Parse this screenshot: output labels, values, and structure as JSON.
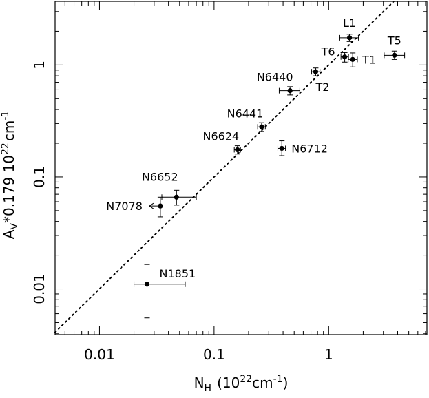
{
  "chart_data": {
    "type": "scatter",
    "title": "",
    "xlabel": {
      "main": "N",
      "sub": "H",
      "units": "(10",
      "exp": "22",
      "unit2": "cm",
      "exp2": "-1",
      "close": ")"
    },
    "ylabel": {
      "main": "A",
      "sub": "V",
      "rest": "*0.179  10",
      "exp": "22",
      "unit": "cm",
      "exp2": "-1"
    },
    "x_scale": "log",
    "y_scale": "log",
    "xlim": [
      0.0041,
      7.2
    ],
    "ylim": [
      0.0039,
      3.7
    ],
    "x_ticks": [
      {
        "value": 0.01,
        "label": "0.01"
      },
      {
        "value": 0.1,
        "label": "0.1"
      },
      {
        "value": 1,
        "label": "1"
      }
    ],
    "y_ticks": [
      {
        "value": 0.01,
        "label": "0.01"
      },
      {
        "value": 0.1,
        "label": "0.1"
      },
      {
        "value": 1,
        "label": "1"
      }
    ],
    "grid": false,
    "legend": "none",
    "reference_line": {
      "style": "dotted",
      "description": "A_V*0.179 = N_H",
      "slope": 1
    },
    "points": [
      {
        "label": "L1",
        "x": 1.52,
        "y": 1.75,
        "xerr": [
          1.25,
          1.82
        ],
        "yerr": [
          1.62,
          1.88
        ],
        "label_pos": "above"
      },
      {
        "label": "T5",
        "x": 3.75,
        "y": 1.22,
        "xerr": [
          3.05,
          4.6
        ],
        "yerr": [
          1.12,
          1.33
        ],
        "label_pos": "above"
      },
      {
        "label": "T6",
        "x": 1.38,
        "y": 1.18,
        "xerr": [
          1.28,
          1.49
        ],
        "yerr": [
          1.06,
          1.29
        ],
        "label_pos": "left"
      },
      {
        "label": "T1",
        "x": 1.62,
        "y": 1.12,
        "xerr": [
          1.48,
          1.78
        ],
        "yerr": [
          0.96,
          1.28
        ],
        "label_pos": "right"
      },
      {
        "label": "T2",
        "x": 0.77,
        "y": 0.87,
        "xerr": [
          0.71,
          0.84
        ],
        "yerr": [
          0.8,
          0.94
        ],
        "label_pos": "below"
      },
      {
        "label": "N6440",
        "x": 0.46,
        "y": 0.59,
        "xerr": [
          0.37,
          0.56
        ],
        "yerr": [
          0.54,
          0.64
        ],
        "label_pos": "above-left"
      },
      {
        "label": "N6441",
        "x": 0.26,
        "y": 0.28,
        "xerr": [
          0.24,
          0.28
        ],
        "yerr": [
          0.255,
          0.305
        ],
        "label_pos": "above-left"
      },
      {
        "label": "N6624",
        "x": 0.16,
        "y": 0.175,
        "xerr": [
          0.15,
          0.17
        ],
        "yerr": [
          0.16,
          0.19
        ],
        "label_pos": "above-left"
      },
      {
        "label": "N6712",
        "x": 0.39,
        "y": 0.18,
        "xerr": [
          0.36,
          0.42
        ],
        "yerr": [
          0.155,
          0.21
        ],
        "label_pos": "right"
      },
      {
        "label": "N6652",
        "x": 0.047,
        "y": 0.066,
        "xerr": [
          0.035,
          0.07
        ],
        "yerr": [
          0.056,
          0.076
        ],
        "label_pos": "above-left"
      },
      {
        "label": "N7078",
        "x": 0.034,
        "y": 0.055,
        "xerr": null,
        "yerr": [
          0.044,
          0.066
        ],
        "upper_limit_x": true,
        "label_pos": "left"
      },
      {
        "label": "N1851",
        "x": 0.026,
        "y": 0.011,
        "xerr": [
          0.02,
          0.056
        ],
        "yerr": [
          0.0055,
          0.0165
        ],
        "label_pos": "above-right"
      }
    ]
  }
}
